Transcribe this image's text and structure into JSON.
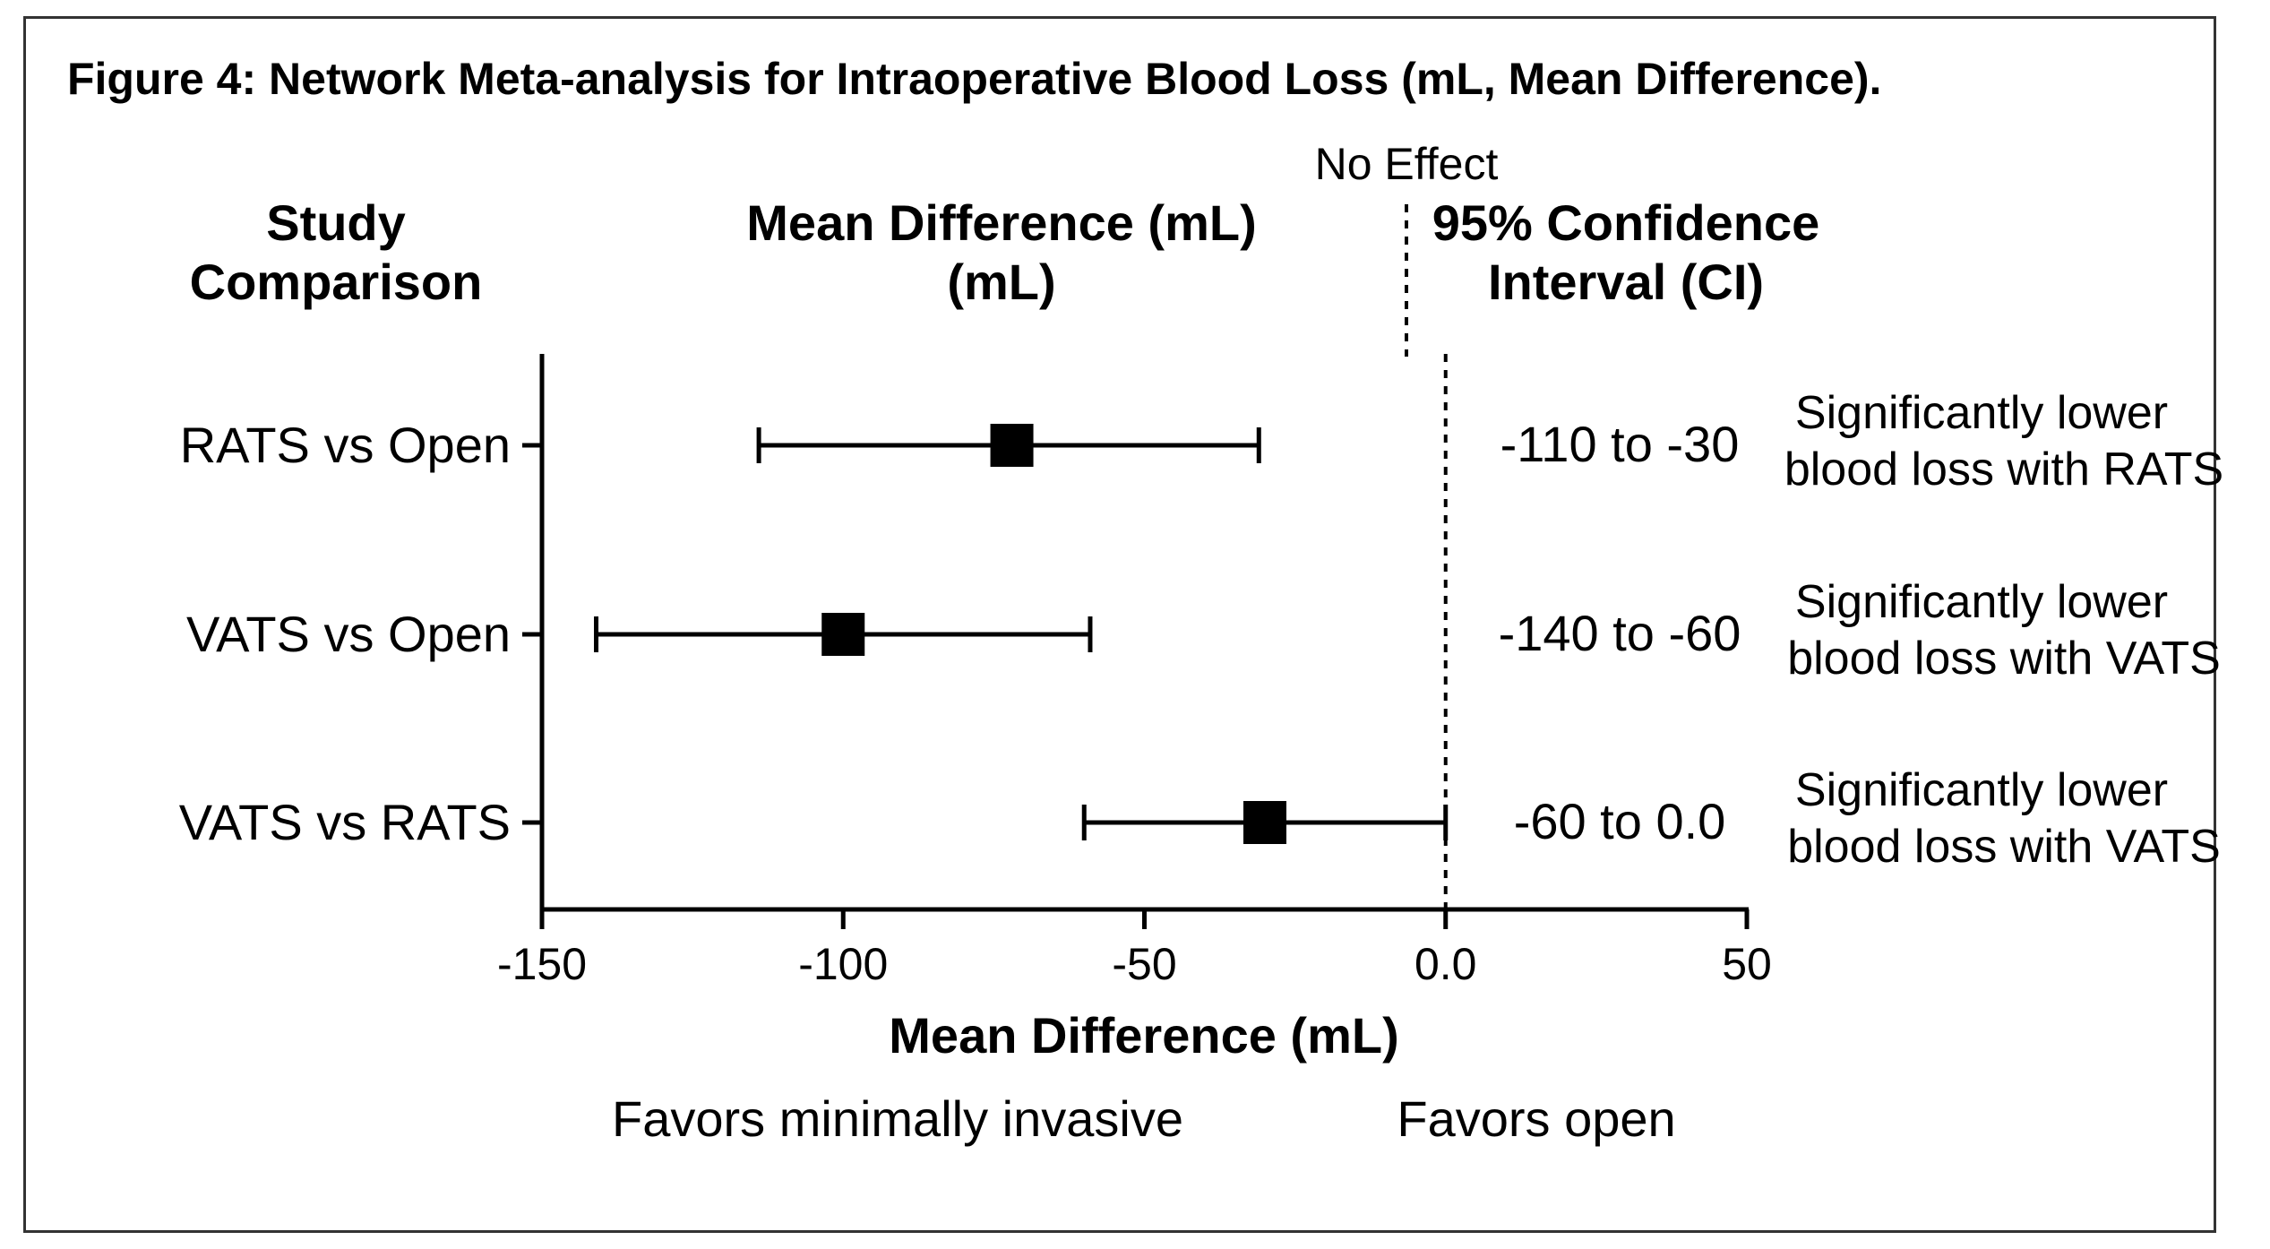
{
  "chart_data": {
    "type": "forest",
    "title": "Figure 4: Network Meta-analysis for Intraoperative Blood Loss (mL, Mean Difference).",
    "column_headers": {
      "comparison": [
        "Study",
        "Comparison"
      ],
      "mean_difference": [
        "Mean Difference (mL)",
        "(mL)"
      ],
      "ci": [
        "95% Confidence",
        "Interval (CI)"
      ]
    },
    "reference_label": "No Effect",
    "reference_value": 0,
    "xlabel": "Mean Difference (mL)",
    "xlim": [
      -150,
      50
    ],
    "x_ticks": [
      -150,
      -100,
      -50,
      0,
      50
    ],
    "x_tick_labels": [
      "-150",
      "-100",
      "-50",
      "0.0",
      "50"
    ],
    "favors_left": "Favors minimally invasive",
    "favors_right": "Favors open",
    "rows": [
      {
        "label": "RATS vs Open",
        "estimate": -72,
        "ci_low": -114,
        "ci_high": -31,
        "ci_text": "-110 to -30",
        "note": [
          "Significantly lower",
          "blood loss with RATS"
        ]
      },
      {
        "label": "VATS vs Open",
        "estimate": -100,
        "ci_low": -141,
        "ci_high": -59,
        "ci_text": "-140 to -60",
        "note": [
          "Significantly lower",
          "blood loss with VATS"
        ]
      },
      {
        "label": "VATS vs RATS",
        "estimate": -30,
        "ci_low": -60,
        "ci_high": 0,
        "ci_text": "-60 to 0.0",
        "note": [
          "Significantly lower",
          "blood loss with VATS"
        ]
      }
    ]
  }
}
